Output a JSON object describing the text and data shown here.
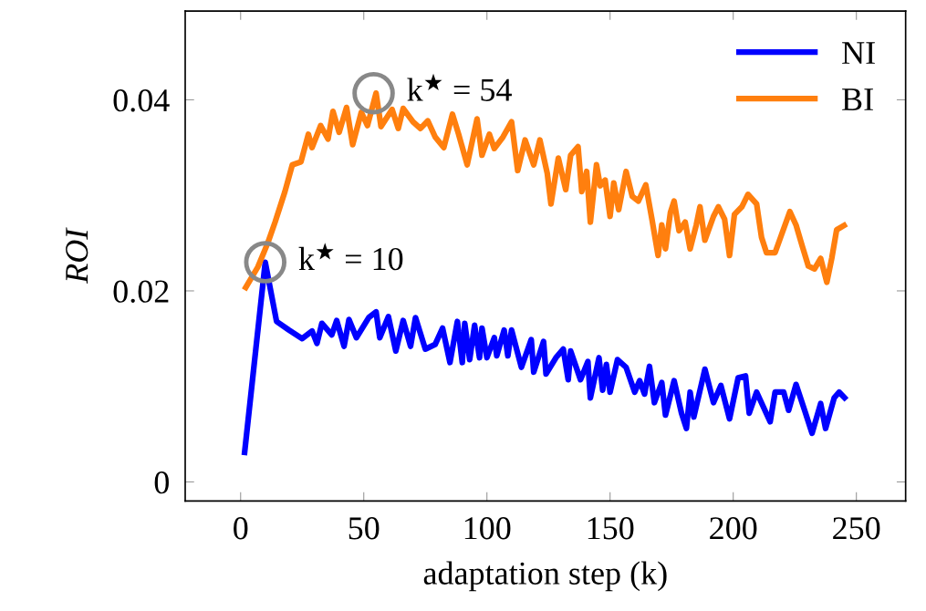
{
  "chart_data": {
    "type": "line",
    "xlabel": "adaptation step (k)",
    "ylabel": "ROI",
    "xlim": [
      -22.5,
      270
    ],
    "ylim": [
      -0.002,
      0.0493
    ],
    "xticks": [
      0,
      50,
      100,
      150,
      200,
      250
    ],
    "yticks": [
      {
        "value": 0,
        "label": "0"
      },
      {
        "value": 0.02,
        "label": "0.02"
      },
      {
        "value": 0.04,
        "label": "0.04"
      }
    ],
    "grid": false,
    "legend": "top right",
    "marker": "none",
    "line_style": "solid",
    "series": [
      {
        "name": "NI",
        "color": "#0000ff",
        "x": [
          1.5,
          10,
          14.6,
          19.6,
          25,
          29,
          31,
          33,
          37,
          39,
          42,
          44,
          47,
          52,
          55,
          56.5,
          60,
          63,
          66,
          69,
          71,
          75,
          79,
          82,
          85,
          88,
          90,
          91,
          93,
          95,
          97,
          98,
          100,
          103,
          104,
          107,
          108.5,
          110,
          114,
          118,
          119,
          123,
          124,
          128,
          131,
          133,
          134,
          138,
          141,
          142,
          145.5,
          147,
          148.5,
          150,
          153,
          156.5,
          160,
          162,
          164,
          166,
          168,
          171,
          172.5,
          176,
          179,
          181,
          182.5,
          184,
          188.5,
          192,
          195,
          198.5,
          202,
          205,
          206.5,
          209.5,
          215,
          217,
          220.5,
          222.5,
          225.5,
          229,
          232,
          235.5,
          237.5,
          241,
          243,
          246
        ],
        "values": [
          0.0028,
          0.023,
          0.0168,
          0.0159,
          0.015,
          0.0158,
          0.0145,
          0.0166,
          0.0154,
          0.0169,
          0.0142,
          0.017,
          0.0151,
          0.0172,
          0.0178,
          0.0151,
          0.0173,
          0.0137,
          0.0169,
          0.0142,
          0.0172,
          0.0139,
          0.0144,
          0.0161,
          0.0125,
          0.0168,
          0.0125,
          0.0166,
          0.0128,
          0.0164,
          0.013,
          0.0161,
          0.013,
          0.0151,
          0.0132,
          0.0159,
          0.0132,
          0.0159,
          0.012,
          0.0149,
          0.0115,
          0.0147,
          0.0113,
          0.013,
          0.0139,
          0.0107,
          0.0137,
          0.0107,
          0.0126,
          0.0088,
          0.013,
          0.0096,
          0.0123,
          0.0094,
          0.0128,
          0.012,
          0.0094,
          0.0106,
          0.0092,
          0.0121,
          0.0083,
          0.0104,
          0.007,
          0.0106,
          0.0072,
          0.0056,
          0.0094,
          0.0068,
          0.0118,
          0.0083,
          0.0101,
          0.0066,
          0.0109,
          0.0111,
          0.0072,
          0.0094,
          0.0063,
          0.0094,
          0.0094,
          0.0075,
          0.0102,
          0.0075,
          0.0051,
          0.0082,
          0.0056,
          0.0088,
          0.0094,
          0.0086
        ]
      },
      {
        "name": "BI",
        "color": "#ff7f0e",
        "x": [
          1.5,
          7,
          11,
          14,
          16,
          18,
          21,
          24.5,
          27.5,
          29,
          32.5,
          35.5,
          37.5,
          40,
          43,
          45.5,
          49,
          51.5,
          55,
          57,
          61.5,
          64,
          66,
          70,
          73,
          76,
          79,
          82.5,
          86,
          88.5,
          92,
          96,
          98,
          101,
          103,
          106.5,
          110,
          112.5,
          115.5,
          119,
          121.5,
          124.5,
          126,
          129,
          132,
          134,
          137,
          138.5,
          140.5,
          142,
          144.5,
          146,
          148,
          150,
          151.5,
          153.5,
          156.5,
          159,
          161.5,
          164.5,
          167,
          169.5,
          171,
          172.5,
          174.5,
          176,
          178,
          180.5,
          182.5,
          185,
          186.5,
          188.5,
          192,
          194,
          196.5,
          198.5,
          200.5,
          203.5,
          206,
          209.5,
          211.5,
          213.5,
          217,
          219.5,
          223,
          225.5,
          228,
          230.5,
          233,
          235.5,
          238,
          240,
          242,
          246
        ],
        "values": [
          0.0201,
          0.0225,
          0.025,
          0.0272,
          0.0288,
          0.0304,
          0.0332,
          0.0335,
          0.0364,
          0.035,
          0.0373,
          0.0359,
          0.0388,
          0.0366,
          0.0392,
          0.0353,
          0.0387,
          0.0373,
          0.0407,
          0.0372,
          0.039,
          0.037,
          0.0391,
          0.0377,
          0.037,
          0.0378,
          0.0361,
          0.035,
          0.0385,
          0.0364,
          0.0332,
          0.038,
          0.0342,
          0.0364,
          0.0349,
          0.0361,
          0.0377,
          0.0326,
          0.0358,
          0.0332,
          0.0358,
          0.0323,
          0.0291,
          0.0339,
          0.0306,
          0.0342,
          0.0351,
          0.0304,
          0.0325,
          0.0272,
          0.0332,
          0.031,
          0.0316,
          0.0278,
          0.0313,
          0.0285,
          0.0325,
          0.0299,
          0.0294,
          0.0311,
          0.0275,
          0.0237,
          0.0269,
          0.0244,
          0.0282,
          0.0294,
          0.0263,
          0.0272,
          0.0244,
          0.0269,
          0.0288,
          0.0253,
          0.0278,
          0.0288,
          0.0275,
          0.0237,
          0.028,
          0.0288,
          0.0301,
          0.0291,
          0.0256,
          0.024,
          0.024,
          0.0258,
          0.0283,
          0.0269,
          0.0247,
          0.0226,
          0.0223,
          0.0234,
          0.0209,
          0.0234,
          0.0264,
          0.027
        ]
      }
    ],
    "annotations": [
      {
        "text": "k$^{★}$ = 10",
        "x": 10,
        "y": 0.023
      },
      {
        "text": "k$^{★}$ = 54",
        "x": 54,
        "y": 0.0407
      }
    ]
  }
}
